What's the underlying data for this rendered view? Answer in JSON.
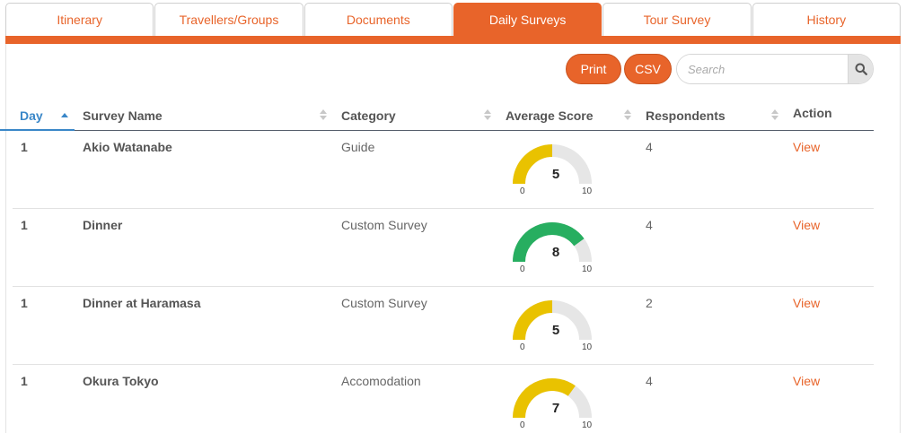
{
  "tabs": [
    {
      "label": "Itinerary",
      "active": false
    },
    {
      "label": "Travellers/Groups",
      "active": false
    },
    {
      "label": "Documents",
      "active": false
    },
    {
      "label": "Daily Surveys",
      "active": true
    },
    {
      "label": "Tour Survey",
      "active": false
    },
    {
      "label": "History",
      "active": false
    }
  ],
  "toolbar": {
    "print_label": "Print",
    "csv_label": "CSV",
    "search_placeholder": "Search",
    "search_icon": "search-icon"
  },
  "table": {
    "columns": {
      "day": "Day",
      "survey_name": "Survey Name",
      "category": "Category",
      "average_score": "Average Score",
      "respondents": "Respondents",
      "action": "Action"
    },
    "gauge_min": "0",
    "gauge_max": "10",
    "rows": [
      {
        "day": "1",
        "survey_name": "Akio Watanabe",
        "category": "Guide",
        "score": "5",
        "respondents": "4",
        "action": "View"
      },
      {
        "day": "1",
        "survey_name": "Dinner",
        "category": "Custom Survey",
        "score": "8",
        "respondents": "4",
        "action": "View"
      },
      {
        "day": "1",
        "survey_name": "Dinner at Haramasa",
        "category": "Custom Survey",
        "score": "5",
        "respondents": "2",
        "action": "View"
      },
      {
        "day": "1",
        "survey_name": "Okura Tokyo",
        "category": "Accomodation",
        "score": "7",
        "respondents": "4",
        "action": "View"
      }
    ]
  },
  "colors": {
    "accent": "#e8642a",
    "sort_active": "#3a87c8",
    "gauge_mid": "#e9c200",
    "gauge_high": "#27ae60",
    "gauge_track": "#e6e6e6"
  }
}
